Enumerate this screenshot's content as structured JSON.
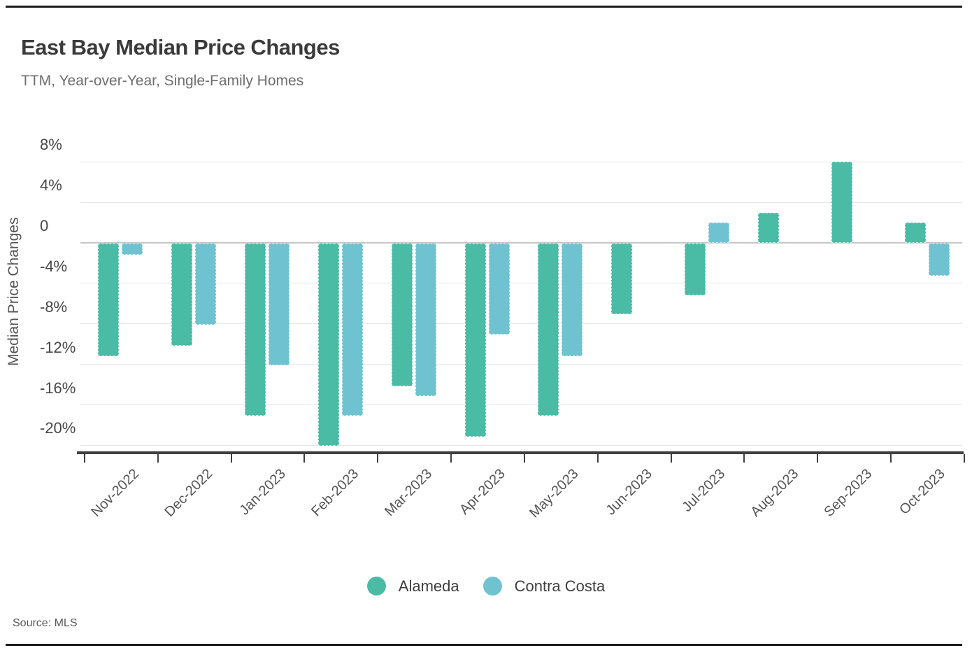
{
  "header": {
    "title": "East Bay Median Price Changes",
    "subtitle": "TTM, Year-over-Year, Single-Family Homes"
  },
  "chart_data": {
    "type": "bar",
    "title": "East Bay Median Price Changes",
    "subtitle": "TTM, Year-over-Year, Single-Family Homes",
    "categories": [
      "Nov-2022",
      "Dec-2022",
      "Jan-2023",
      "Feb-2023",
      "Mar-2023",
      "Apr-2023",
      "May-2023",
      "Jun-2023",
      "Jul-2023",
      "Aug-2023",
      "Sep-2023",
      "Oct-2023"
    ],
    "series": [
      {
        "name": "Alameda",
        "color": "#4ABBA4",
        "values": [
          -11.1,
          -10.1,
          -17.0,
          -20.0,
          -14.1,
          -19.1,
          -17.0,
          -7.0,
          -5.1,
          3.0,
          8.0,
          2.0
        ]
      },
      {
        "name": "Contra Costa",
        "color": "#6FC3D1",
        "values": [
          -1.1,
          -8.0,
          -12.0,
          -17.0,
          -15.1,
          -9.0,
          -11.1,
          0,
          2.0,
          0,
          0,
          -3.2
        ]
      }
    ],
    "xlabel": "",
    "ylabel": "Median Price Changes",
    "yticks": [
      {
        "value": 8,
        "label": "8%"
      },
      {
        "value": 4,
        "label": "4%"
      },
      {
        "value": 0,
        "label": "0"
      },
      {
        "value": -4,
        "label": "-4%"
      },
      {
        "value": -8,
        "label": "-8%"
      },
      {
        "value": -12,
        "label": "-12%"
      },
      {
        "value": -16,
        "label": "-16%"
      },
      {
        "value": -20,
        "label": "-20%"
      }
    ],
    "ylim": [
      -20.8,
      9.3
    ],
    "grid": "horizontal",
    "legend_position": "bottom"
  },
  "footer": {
    "source": "Source:  MLS"
  }
}
